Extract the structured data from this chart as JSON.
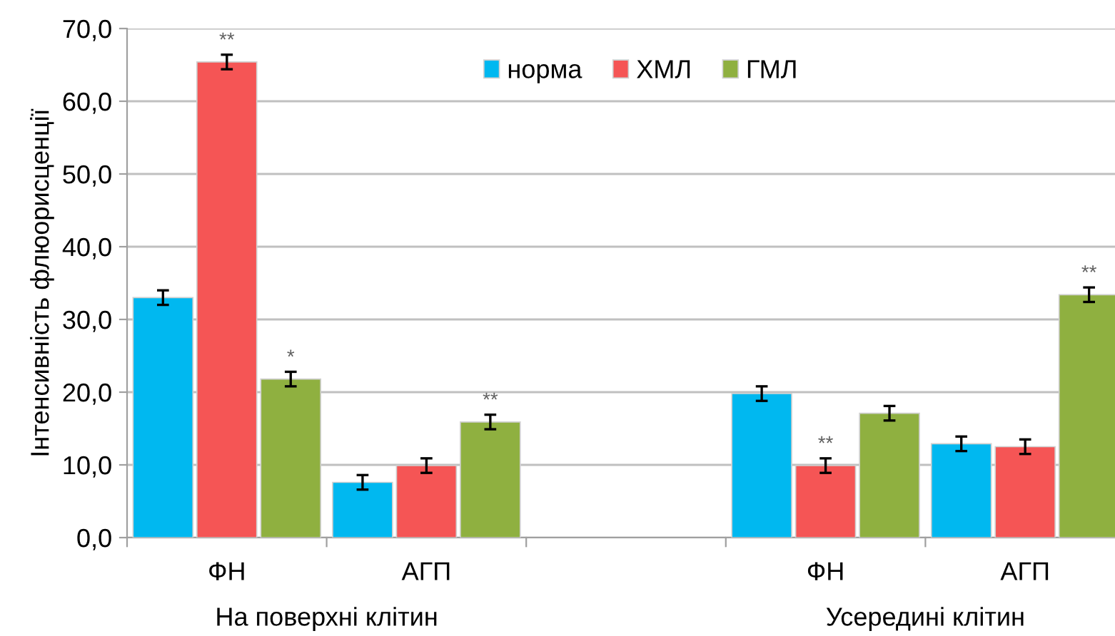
{
  "chart_data": {
    "type": "bar",
    "ylabel": "Інтенсивність флюорисценції",
    "categories": [
      "ФН",
      "АГП",
      null,
      "ФН",
      "АГП"
    ],
    "series": [
      {
        "name": "норма",
        "color": "#00b8f0",
        "values": [
          33.0,
          7.6,
          null,
          19.8,
          12.9
        ],
        "errors": [
          1.0,
          1.0,
          null,
          1.0,
          1.0
        ],
        "value_labels": [
          null,
          null,
          null,
          null,
          null
        ]
      },
      {
        "name": "ХМЛ",
        "color": "#f55555",
        "values": [
          65.4,
          9.9,
          null,
          9.9,
          12.5
        ],
        "errors": [
          1.0,
          1.0,
          null,
          1.0,
          1.0
        ],
        "value_labels": [
          "**",
          null,
          null,
          "**",
          null
        ]
      },
      {
        "name": "ГМЛ",
        "color": "#8fb040",
        "values": [
          21.8,
          15.9,
          null,
          17.1,
          33.4
        ],
        "errors": [
          1.0,
          1.0,
          null,
          1.0,
          1.0
        ],
        "value_labels": [
          "*",
          "**",
          null,
          null,
          "**"
        ]
      }
    ],
    "annotations": [
      "На поверхні клітин",
      "Усередині клітин"
    ],
    "ylim": [
      0,
      70
    ],
    "yticks": [
      {
        "value": 0,
        "label": "0,0"
      },
      {
        "value": 10,
        "label": "10,0"
      },
      {
        "value": 20,
        "label": "20,0"
      },
      {
        "value": 30,
        "label": "30,0"
      },
      {
        "value": 40,
        "label": "40,0"
      },
      {
        "value": 50,
        "label": "50,0"
      },
      {
        "value": 60,
        "label": "60,0"
      },
      {
        "value": 70,
        "label": "70,0"
      }
    ],
    "grid": "y",
    "legend": "top"
  }
}
